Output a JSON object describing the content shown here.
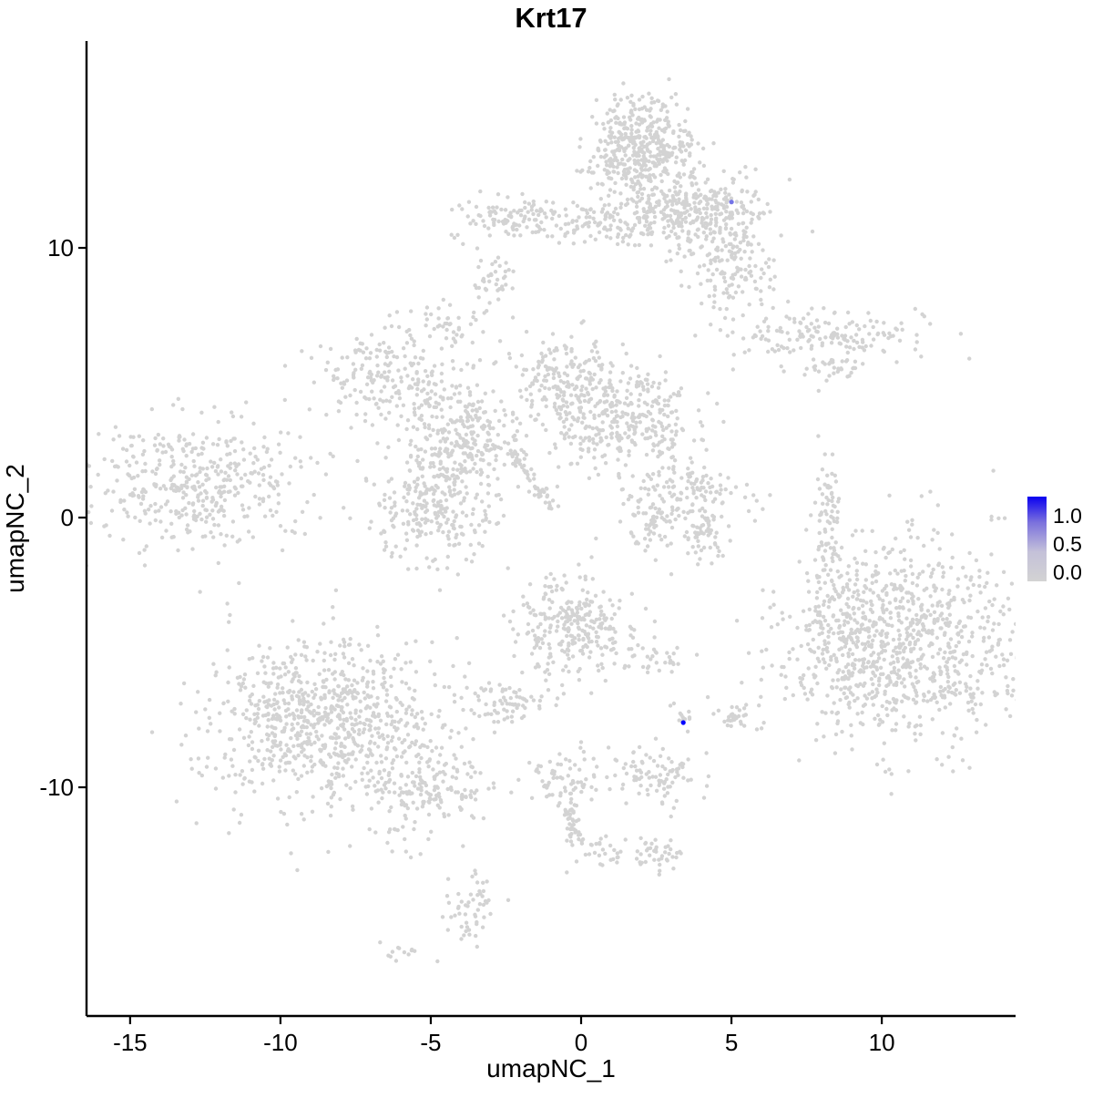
{
  "chart_data": {
    "type": "scatter",
    "title": "Krt17",
    "xlabel": "umapNC_1",
    "ylabel": "umapNC_2",
    "xlim": [
      -16.45,
      14.45
    ],
    "ylim": [
      -18.48,
      17.67
    ],
    "grid": false,
    "point_color": "#d3d3d3",
    "expression_min_color": "#d3d3d3",
    "expression_max_color": "#0000ff",
    "x_ticks": [
      {
        "value": -15,
        "label": "-15"
      },
      {
        "value": -10,
        "label": "-10"
      },
      {
        "value": -5,
        "label": "-5"
      },
      {
        "value": 0,
        "label": "0"
      },
      {
        "value": 5,
        "label": "5"
      },
      {
        "value": 10,
        "label": "10"
      }
    ],
    "y_ticks": [
      {
        "value": -10,
        "label": "-10"
      },
      {
        "value": 0,
        "label": "0"
      },
      {
        "value": 10,
        "label": "10"
      }
    ],
    "legend": {
      "position": "right",
      "ticks": [
        {
          "value": 1.0,
          "label": "1.0"
        },
        {
          "value": 0.5,
          "label": "0.5"
        },
        {
          "value": 0.0,
          "label": "0.0"
        }
      ]
    },
    "clusters": [
      {
        "name": "top-main",
        "cx": 1.9,
        "cy": 13.8,
        "sdx": 0.9,
        "sdy": 0.85,
        "n": 420
      },
      {
        "name": "top-neck",
        "cx": 2.6,
        "cy": 11.4,
        "sdx": 0.9,
        "sdy": 0.7,
        "n": 150
      },
      {
        "name": "top-right-arm",
        "cx": 4.3,
        "cy": 11.3,
        "sdx": 1.0,
        "sdy": 0.8,
        "n": 220
      },
      {
        "name": "top-right-tail",
        "cx": 5.0,
        "cy": 9.3,
        "sdx": 0.7,
        "sdy": 0.8,
        "n": 130
      },
      {
        "name": "top-left-arm",
        "cx": 0.7,
        "cy": 10.9,
        "sdx": 1.0,
        "sdy": 0.4,
        "n": 90
      },
      {
        "name": "top-left-strip",
        "cx": -2.2,
        "cy": 11.1,
        "sdx": 1.1,
        "sdy": 0.4,
        "n": 110
      },
      {
        "name": "small-blob-upper",
        "cx": -3.0,
        "cy": 8.7,
        "sdx": 0.4,
        "sdy": 0.45,
        "n": 40
      },
      {
        "name": "small-blob-mid",
        "cx": -4.5,
        "cy": 7.2,
        "sdx": 0.4,
        "sdy": 0.4,
        "n": 30
      },
      {
        "name": "right-upper",
        "cx": 8.2,
        "cy": 6.7,
        "sdx": 1.6,
        "sdy": 0.55,
        "n": 170
      },
      {
        "name": "right-upper-tail",
        "cx": 8.5,
        "cy": 5.6,
        "sdx": 0.4,
        "sdy": 0.3,
        "n": 25
      },
      {
        "name": "mid-lobe-a",
        "cx": -0.5,
        "cy": 5.0,
        "sdx": 0.85,
        "sdy": 0.9,
        "n": 210
      },
      {
        "name": "mid-lobe-b",
        "cx": 1.9,
        "cy": 3.9,
        "sdx": 1.0,
        "sdy": 0.75,
        "n": 210
      },
      {
        "name": "mid-lobe-c",
        "cx": -6.5,
        "cy": 5.2,
        "sdx": 1.1,
        "sdy": 0.85,
        "n": 190
      },
      {
        "name": "mid-lobe-d",
        "cx": -4.0,
        "cy": 2.9,
        "sdx": 0.95,
        "sdy": 1.0,
        "n": 220
      },
      {
        "name": "mid-lobe-e",
        "cx": -4.9,
        "cy": 0.5,
        "sdx": 1.1,
        "sdy": 1.0,
        "n": 260
      },
      {
        "name": "mid-sparse",
        "cx": -4.3,
        "cy": 3.9,
        "sdx": 1.6,
        "sdy": 1.6,
        "n": 70
      },
      {
        "name": "mid-sparse-b",
        "cx": 0.3,
        "cy": 2.7,
        "sdx": 0.8,
        "sdy": 0.8,
        "n": 60
      },
      {
        "name": "left-cluster",
        "cx": -12.9,
        "cy": 1.3,
        "sdx": 1.9,
        "sdy": 1.15,
        "n": 430
      },
      {
        "name": "crescent-top",
        "cx": 3.5,
        "cy": 1.0,
        "sdx": 1.0,
        "sdy": 0.55,
        "n": 120
      },
      {
        "name": "crescent-left",
        "cx": 2.4,
        "cy": -0.3,
        "sdx": 0.45,
        "sdy": 0.6,
        "n": 60
      },
      {
        "name": "crescent-right",
        "cx": 4.2,
        "cy": -0.7,
        "sdx": 0.45,
        "sdy": 0.55,
        "n": 60
      },
      {
        "name": "crescent-above",
        "cx": 3.0,
        "cy": 2.3,
        "sdx": 0.4,
        "sdy": 0.6,
        "n": 25
      },
      {
        "name": "right-vertical",
        "cx": 8.2,
        "cy": 0.0,
        "sdx": 0.18,
        "sdy": 1.2,
        "n": 70
      },
      {
        "name": "big-right",
        "cx": 10.7,
        "cy": -4.6,
        "sdx": 2.1,
        "sdy": 1.9,
        "n": 950
      },
      {
        "name": "big-right-west",
        "cx": 8.7,
        "cy": -4.5,
        "sdx": 0.6,
        "sdy": 1.6,
        "n": 90
      },
      {
        "name": "center-lower",
        "cx": -0.2,
        "cy": -4.1,
        "sdx": 0.95,
        "sdy": 0.95,
        "n": 280
      },
      {
        "name": "center-lower-ext",
        "cx": 2.5,
        "cy": -5.2,
        "sdx": 0.55,
        "sdy": 0.3,
        "n": 30
      },
      {
        "name": "pair-near-blue",
        "cx": 3.4,
        "cy": -7.4,
        "sdx": 0.25,
        "sdy": 0.3,
        "n": 12
      },
      {
        "name": "small-right-pair",
        "cx": 5.2,
        "cy": -7.3,
        "sdx": 0.3,
        "sdy": 0.4,
        "n": 30
      },
      {
        "name": "lower-left-big",
        "cx": -8.4,
        "cy": -7.6,
        "sdx": 2.0,
        "sdy": 1.6,
        "n": 850
      },
      {
        "name": "lower-left-tail",
        "cx": -4.9,
        "cy": -10.0,
        "sdx": 0.9,
        "sdy": 0.6,
        "n": 130
      },
      {
        "name": "lower-left-drip",
        "cx": -6.2,
        "cy": -11.7,
        "sdx": 0.5,
        "sdy": 0.4,
        "n": 20
      },
      {
        "name": "small-mid-left",
        "cx": -2.5,
        "cy": -6.9,
        "sdx": 0.5,
        "sdy": 0.5,
        "n": 70
      },
      {
        "name": "below-center-a",
        "cx": -0.5,
        "cy": -9.7,
        "sdx": 0.6,
        "sdy": 0.5,
        "n": 70
      },
      {
        "name": "below-center-b",
        "cx": 2.5,
        "cy": -9.5,
        "sdx": 0.75,
        "sdy": 0.5,
        "n": 90
      },
      {
        "name": "bits-c",
        "cx": 0.6,
        "cy": -12.3,
        "sdx": 0.5,
        "sdy": 0.35,
        "n": 35
      },
      {
        "name": "bits-d",
        "cx": 2.4,
        "cy": -12.4,
        "sdx": 0.45,
        "sdy": 0.35,
        "n": 40
      },
      {
        "name": "bottom-small",
        "cx": -3.7,
        "cy": -14.5,
        "sdx": 0.4,
        "sdy": 0.75,
        "n": 55
      },
      {
        "name": "bottom-tiny",
        "cx": -6.1,
        "cy": -16.1,
        "sdx": 0.3,
        "sdy": 0.2,
        "n": 12
      }
    ],
    "streaks": [
      {
        "name": "diagonal-streak",
        "x1": -2.3,
        "y1": 2.4,
        "x2": -0.9,
        "y2": 0.3,
        "jitter": 0.12,
        "n": 55
      },
      {
        "name": "below-strip",
        "x1": -0.4,
        "y1": -10.5,
        "x2": -0.3,
        "y2": -12.0,
        "jitter": 0.12,
        "n": 40
      }
    ],
    "singles": [
      [
        7.9,
        4.7
      ],
      [
        3.0,
        -2.1
      ]
    ],
    "expressing_cells": [
      {
        "x": 5.0,
        "y": 11.7,
        "value": 0.45
      },
      {
        "x": 3.4,
        "y": -7.6,
        "value": 1.0
      }
    ]
  }
}
